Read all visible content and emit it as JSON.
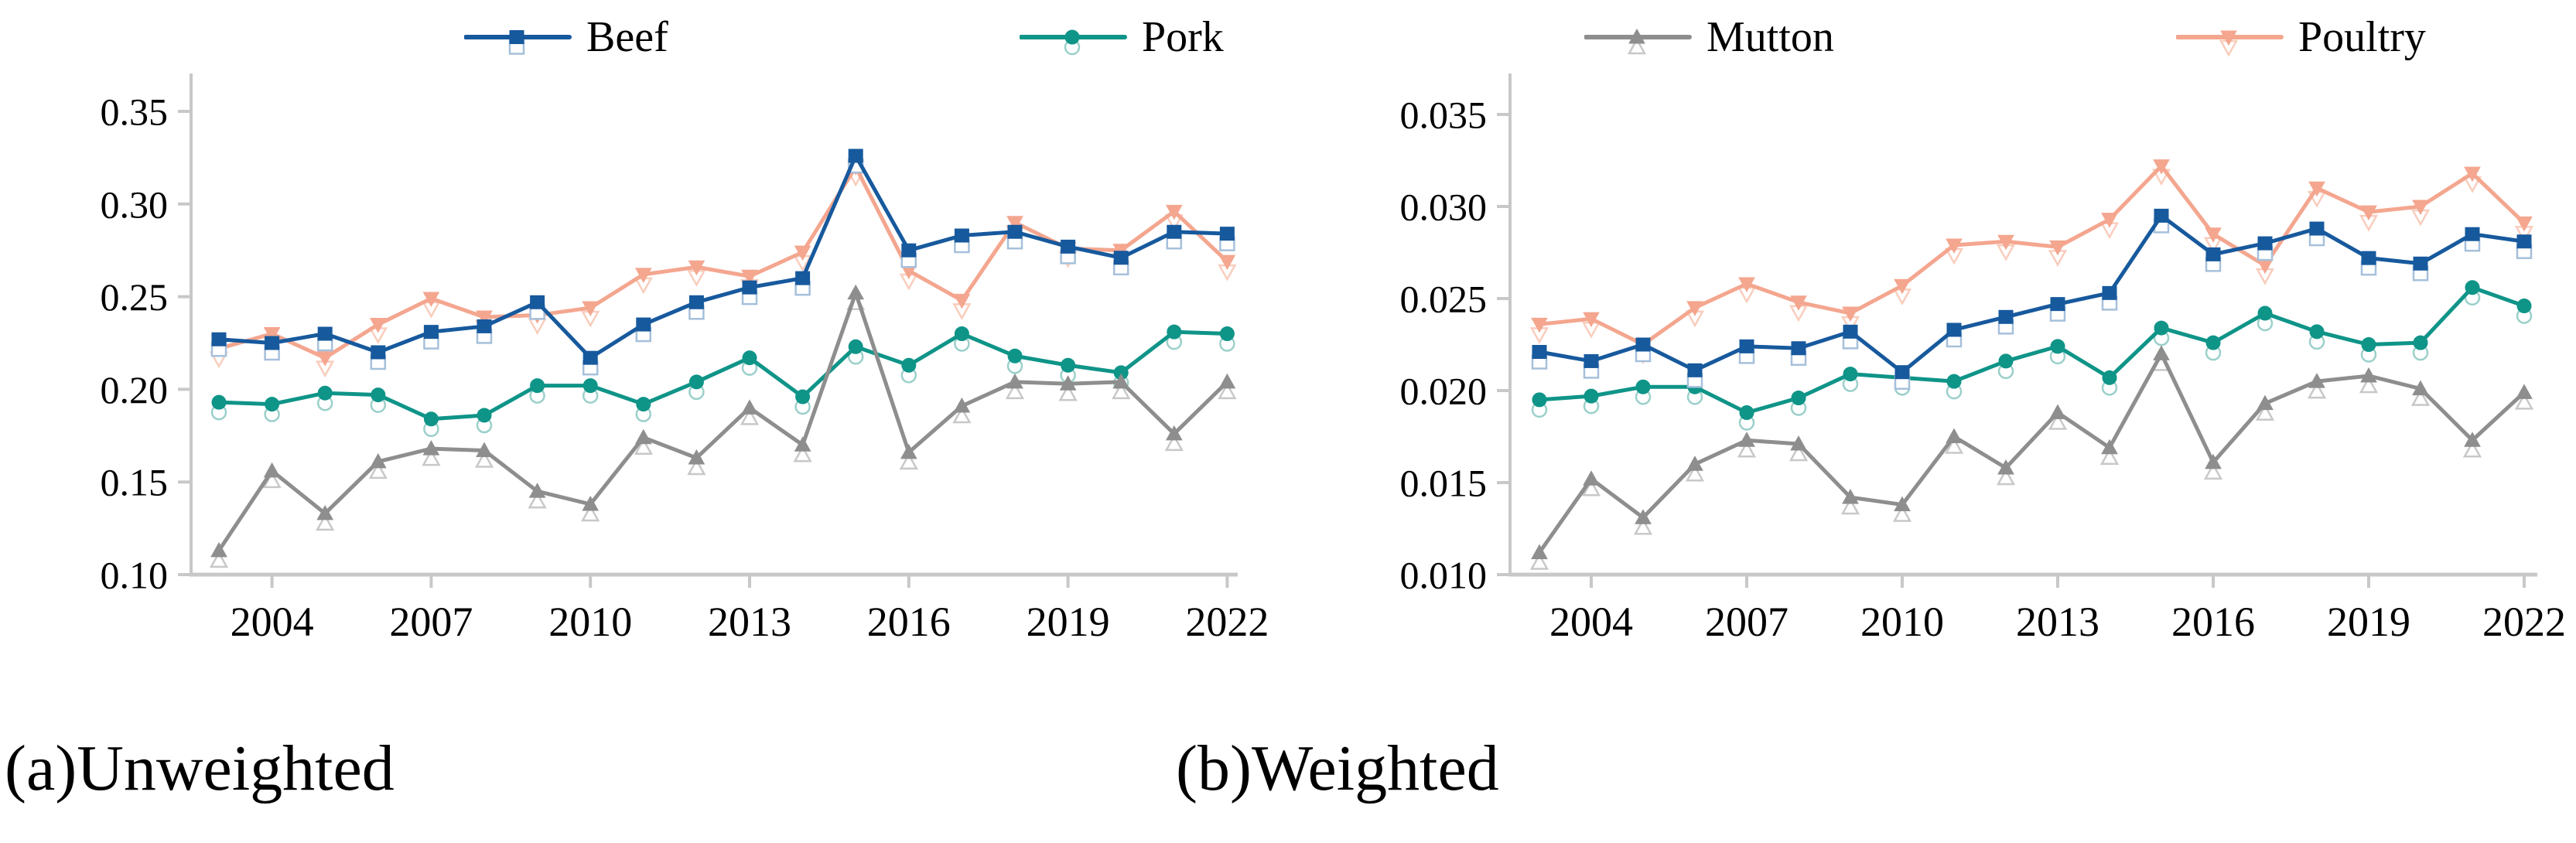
{
  "figure": {
    "background": "#ffffff",
    "axis_color": "#c8c8c8"
  },
  "chart_data": [
    {
      "type": "line",
      "title": "(a)Unweighted",
      "xlabel": "",
      "ylabel": "",
      "grid": false,
      "legend_position": "top",
      "x": [
        2003,
        2004,
        2005,
        2006,
        2007,
        2008,
        2009,
        2010,
        2011,
        2012,
        2013,
        2014,
        2015,
        2016,
        2017,
        2018,
        2019,
        2020,
        2021,
        2022
      ],
      "xticks": [
        2004,
        2007,
        2010,
        2013,
        2016,
        2019,
        2022
      ],
      "xtick_labels": [
        "2004",
        "2007",
        "2010",
        "2013",
        "2016",
        "2019",
        "2022"
      ],
      "ylim": [
        0.1,
        0.35
      ],
      "yticks": [
        0.1,
        0.15,
        0.2,
        0.25,
        0.3,
        0.35
      ],
      "ytick_labels": [
        "0.10",
        "0.15",
        "0.20",
        "0.25",
        "0.30",
        "0.35"
      ],
      "series": [
        {
          "name": "Beef",
          "marker": "square",
          "color": "#17599d",
          "echo_color": "#a6c0db",
          "values": [
            0.227,
            0.225,
            0.23,
            0.22,
            0.231,
            0.234,
            0.247,
            0.217,
            0.235,
            0.247,
            0.255,
            0.26,
            0.326,
            0.275,
            0.283,
            0.285,
            0.277,
            0.271,
            0.285,
            0.284
          ]
        },
        {
          "name": "Pork",
          "marker": "circle",
          "color": "#0f9488",
          "echo_color": "#9bd0ca",
          "values": [
            0.193,
            0.192,
            0.198,
            0.197,
            0.184,
            0.186,
            0.202,
            0.202,
            0.192,
            0.204,
            0.217,
            0.196,
            0.223,
            0.213,
            0.23,
            0.218,
            0.213,
            0.209,
            0.231,
            0.23
          ]
        },
        {
          "name": "Mutton",
          "marker": "triangle-up",
          "color": "#8e8e8e",
          "echo_color": "#c8c8c8",
          "values": [
            0.113,
            0.156,
            0.133,
            0.161,
            0.168,
            0.167,
            0.145,
            0.138,
            0.174,
            0.163,
            0.19,
            0.17,
            0.252,
            0.166,
            0.191,
            0.204,
            0.203,
            0.204,
            0.176,
            0.204
          ]
        },
        {
          "name": "Poultry",
          "marker": "triangle-down",
          "color": "#f4a68f",
          "echo_color": "#f9cdbd",
          "values": [
            0.222,
            0.23,
            0.217,
            0.235,
            0.249,
            0.239,
            0.24,
            0.244,
            0.262,
            0.266,
            0.261,
            0.274,
            0.32,
            0.264,
            0.248,
            0.29,
            0.276,
            0.275,
            0.296,
            0.269
          ]
        }
      ]
    },
    {
      "type": "line",
      "title": "(b)Weighted",
      "xlabel": "",
      "ylabel": "",
      "grid": false,
      "legend_position": "top",
      "x": [
        2003,
        2004,
        2005,
        2006,
        2007,
        2008,
        2009,
        2010,
        2011,
        2012,
        2013,
        2014,
        2015,
        2016,
        2017,
        2018,
        2019,
        2020,
        2021,
        2022
      ],
      "xticks": [
        2004,
        2007,
        2010,
        2013,
        2016,
        2019,
        2022
      ],
      "xtick_labels": [
        "2004",
        "2007",
        "2010",
        "2013",
        "2016",
        "2019",
        "2022"
      ],
      "ylim": [
        0.01,
        0.035
      ],
      "yticks": [
        0.01,
        0.015,
        0.02,
        0.025,
        0.03,
        0.035
      ],
      "ytick_labels": [
        "0.010",
        "0.015",
        "0.020",
        "0.025",
        "0.030",
        "0.035"
      ],
      "series": [
        {
          "name": "Beef",
          "marker": "square",
          "color": "#17599d",
          "echo_color": "#a6c0db",
          "values": [
            0.0221,
            0.0216,
            0.0225,
            0.0211,
            0.0224,
            0.0223,
            0.0232,
            0.021,
            0.0233,
            0.024,
            0.0247,
            0.0253,
            0.0295,
            0.0274,
            0.028,
            0.0288,
            0.0272,
            0.0269,
            0.0285,
            0.0281
          ]
        },
        {
          "name": "Pork",
          "marker": "circle",
          "color": "#0f9488",
          "echo_color": "#9bd0ca",
          "values": [
            0.0195,
            0.0197,
            0.0202,
            0.0202,
            0.0188,
            0.0196,
            0.0209,
            0.0207,
            0.0205,
            0.0216,
            0.0224,
            0.0207,
            0.0234,
            0.0226,
            0.0242,
            0.0232,
            0.0225,
            0.0226,
            0.0256,
            0.0246
          ]
        },
        {
          "name": "Mutton",
          "marker": "triangle-up",
          "color": "#8e8e8e",
          "echo_color": "#c8c8c8",
          "values": [
            0.0112,
            0.0152,
            0.0131,
            0.016,
            0.0173,
            0.0171,
            0.0142,
            0.0138,
            0.0175,
            0.0158,
            0.0188,
            0.0169,
            0.022,
            0.0161,
            0.0193,
            0.0205,
            0.0208,
            0.0201,
            0.0173,
            0.0199
          ]
        },
        {
          "name": "Poultry",
          "marker": "triangle-down",
          "color": "#f4a68f",
          "echo_color": "#f9cdbd",
          "values": [
            0.0236,
            0.0239,
            0.0225,
            0.0245,
            0.0258,
            0.0248,
            0.0242,
            0.0257,
            0.0279,
            0.0281,
            0.0278,
            0.0293,
            0.0322,
            0.0285,
            0.0268,
            0.031,
            0.0297,
            0.03,
            0.0318,
            0.0291
          ]
        }
      ]
    }
  ]
}
